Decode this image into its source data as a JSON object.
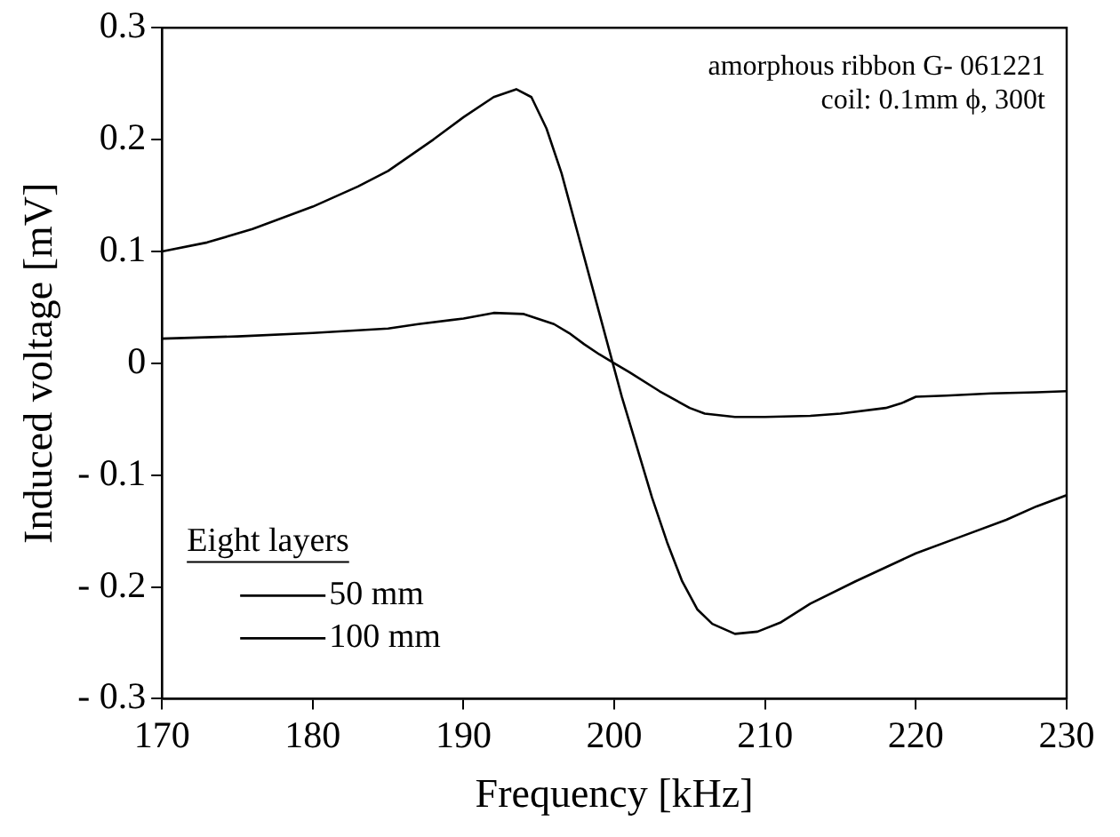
{
  "chart_data": {
    "type": "line",
    "xlabel": "Frequency [kHz]",
    "ylabel": "Induced voltage [mV]",
    "legend_title": "Eight layers",
    "legend": "bottom left",
    "annotations": [
      "amorphous ribbon G- 061221",
      "coil: 0.1mm ϕ, 300t"
    ],
    "xlim": [
      170,
      230
    ],
    "xticks": [
      170,
      180,
      190,
      200,
      210,
      220,
      230
    ],
    "ylim": [
      -0.3,
      0.3
    ],
    "yticks": [
      {
        "value": -0.3,
        "label": "- 0.3"
      },
      {
        "value": -0.2,
        "label": "- 0.2"
      },
      {
        "value": -0.1,
        "label": "- 0.1"
      },
      0,
      0.1,
      0.2,
      0.3
    ],
    "grid": false,
    "marker": "none",
    "line_style": "solid",
    "series": [
      {
        "name": "50 mm",
        "color": "#000000",
        "x": [
          170,
          175,
          180,
          185,
          187,
          190,
          192,
          194,
          196,
          197,
          198,
          199,
          200,
          201,
          203,
          205,
          206,
          208,
          210,
          213,
          215,
          218,
          219,
          220,
          222,
          225,
          228,
          230
        ],
        "values": [
          0.022,
          0.024,
          0.027,
          0.031,
          0.035,
          0.04,
          0.045,
          0.044,
          0.035,
          0.027,
          0.017,
          0.008,
          0.0,
          -0.008,
          -0.025,
          -0.04,
          -0.045,
          -0.048,
          -0.048,
          -0.047,
          -0.045,
          -0.04,
          -0.036,
          -0.03,
          -0.029,
          -0.027,
          -0.026,
          -0.025
        ]
      },
      {
        "name": "100 mm",
        "color": "#000000",
        "x": [
          170,
          173,
          176,
          180,
          183,
          185,
          188,
          190,
          192,
          193.5,
          194.5,
          195.5,
          196.5,
          197.5,
          198.5,
          199.5,
          200.5,
          201.5,
          202.5,
          203.5,
          204.5,
          205.5,
          206.5,
          208,
          209.5,
          211,
          213,
          216,
          220,
          223,
          226,
          228,
          230
        ],
        "values": [
          0.1,
          0.108,
          0.12,
          0.14,
          0.158,
          0.172,
          0.2,
          0.22,
          0.238,
          0.245,
          0.238,
          0.21,
          0.17,
          0.12,
          0.07,
          0.02,
          -0.03,
          -0.075,
          -0.12,
          -0.16,
          -0.195,
          -0.22,
          -0.233,
          -0.242,
          -0.24,
          -0.232,
          -0.215,
          -0.195,
          -0.17,
          -0.155,
          -0.14,
          -0.128,
          -0.118
        ]
      }
    ]
  }
}
